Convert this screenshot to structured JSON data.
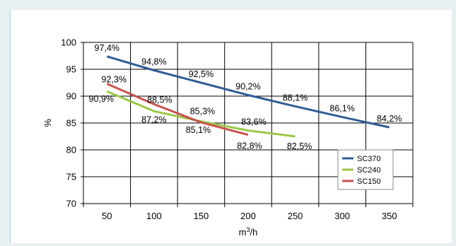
{
  "chart_data": {
    "type": "line",
    "x": [
      50,
      100,
      150,
      200,
      250,
      300,
      350
    ],
    "xlabel_base": "m",
    "xlabel_sup": "3",
    "xlabel_tail": "/h",
    "ylabel": "%",
    "ylim": [
      70,
      100
    ],
    "yticks": [
      70,
      75,
      80,
      85,
      90,
      95,
      100
    ],
    "xlim": [
      25,
      375
    ],
    "grid": true,
    "legend_position": "bottom-right",
    "series": [
      {
        "name": "SC370",
        "color": "#2f5d95",
        "x": [
          50,
          100,
          150,
          200,
          250,
          300,
          350
        ],
        "values": [
          97.4,
          94.8,
          92.5,
          90.2,
          88.1,
          86.1,
          84.2
        ],
        "labels": [
          "97,4%",
          "94,8%",
          "92,5%",
          "90,2%",
          "88,1%",
          "86,1%",
          "84,2%"
        ]
      },
      {
        "name": "SC240",
        "color": "#9cc749",
        "x": [
          50,
          100,
          150,
          200,
          250
        ],
        "values": [
          90.9,
          87.2,
          85.3,
          83.6,
          82.5
        ],
        "labels": [
          "90,9%",
          "87,2%",
          "85,3%",
          "83,6%",
          "82,5%"
        ]
      },
      {
        "name": "SC150",
        "color": "#c6524f",
        "x": [
          50,
          100,
          150,
          200
        ],
        "values": [
          92.3,
          88.5,
          85.1,
          82.8
        ],
        "labels": [
          "92,3%",
          "88,5%",
          "85,1%",
          "82,8%"
        ]
      }
    ]
  }
}
